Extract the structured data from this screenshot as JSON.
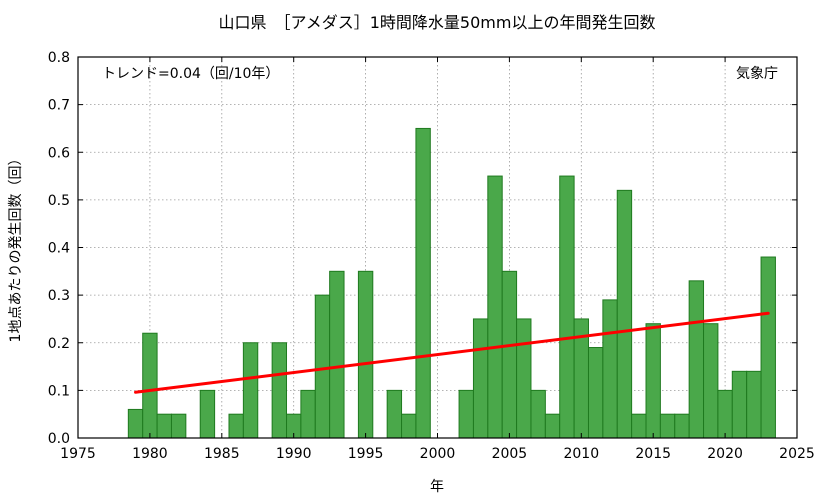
{
  "chart_data": {
    "type": "bar",
    "title": "山口県　［アメダス］1時間降水量50mm以上の年間発生回数",
    "xlabel": "年",
    "ylabel": "1地点あたりの発生回数（回）",
    "xlim": [
      1975,
      2025
    ],
    "ylim": [
      0,
      0.8
    ],
    "xticks": [
      "1975",
      "1980",
      "1985",
      "1990",
      "1995",
      "2000",
      "2005",
      "2010",
      "2015",
      "2020",
      "2025"
    ],
    "yticks": [
      "0.0",
      "0.1",
      "0.2",
      "0.3",
      "0.4",
      "0.5",
      "0.6",
      "0.7",
      "0.8"
    ],
    "grid": true,
    "bar_color": "#4aa84a",
    "bar_edge_color": "#1f7a1f",
    "trend_color": "#ff0000",
    "trend_text": "トレンド=0.04（回/10年）",
    "source_text": "気象庁",
    "x": [
      1979,
      1980,
      1981,
      1982,
      1983,
      1984,
      1985,
      1986,
      1987,
      1988,
      1989,
      1990,
      1991,
      1992,
      1993,
      1994,
      1995,
      1996,
      1997,
      1998,
      1999,
      2000,
      2001,
      2002,
      2003,
      2004,
      2005,
      2006,
      2007,
      2008,
      2009,
      2010,
      2011,
      2012,
      2013,
      2014,
      2015,
      2016,
      2017,
      2018,
      2019,
      2020,
      2021,
      2022,
      2023
    ],
    "values": [
      0.06,
      0.22,
      0.05,
      0.05,
      0,
      0.1,
      0,
      0.05,
      0.2,
      0,
      0.2,
      0.05,
      0.1,
      0.3,
      0.35,
      0,
      0.35,
      0,
      0.1,
      0.05,
      0.65,
      0,
      0,
      0.1,
      0.25,
      0.55,
      0.35,
      0.25,
      0.1,
      0.05,
      0.55,
      0.25,
      0.19,
      0.29,
      0.52,
      0.05,
      0.24,
      0.05,
      0.05,
      0.33,
      0.24,
      0.1,
      0.14,
      0.14,
      0.38
    ],
    "trend_line": {
      "x": [
        1979,
        2023
      ],
      "y": [
        0.096,
        0.262
      ]
    }
  }
}
